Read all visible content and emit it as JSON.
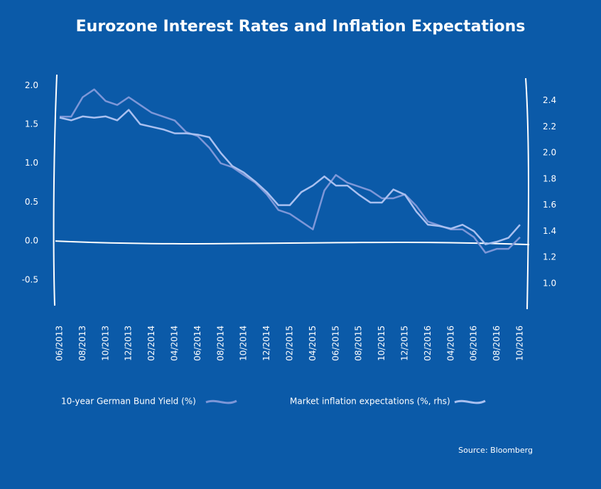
{
  "chart_data": {
    "type": "line",
    "title": "Eurozone Interest Rates and Inflation Expectations",
    "source": "Source: Bloomberg",
    "categories": [
      "06/2013",
      null,
      "08/2013",
      null,
      "10/2013",
      null,
      "12/2013",
      null,
      "02/2014",
      null,
      "04/2014",
      null,
      "06/2014",
      null,
      "08/2014",
      null,
      "10/2014",
      null,
      "12/2014",
      null,
      "02/2015",
      null,
      "04/2015",
      null,
      "06/2015",
      null,
      "08/2015",
      null,
      "10/2015",
      null,
      "12/2015",
      null,
      "02/2016",
      null,
      "04/2016",
      null,
      "06/2016",
      null,
      "08/2016",
      null,
      "10/2016"
    ],
    "series": [
      {
        "name": "10-year German Bund Yield (%)",
        "color": "#7d97d8",
        "values": [
          1.6,
          1.6,
          1.85,
          1.95,
          1.8,
          1.75,
          1.85,
          1.75,
          1.65,
          1.6,
          1.55,
          1.4,
          1.35,
          1.2,
          1.0,
          0.95,
          0.85,
          0.75,
          0.6,
          0.4,
          0.35,
          0.25,
          0.15,
          0.65,
          0.85,
          0.75,
          0.7,
          0.65,
          0.55,
          0.55,
          0.6,
          0.45,
          0.25,
          0.2,
          0.15,
          0.15,
          0.05,
          -0.15,
          -0.1,
          -0.1,
          0.05
        ]
      },
      {
        "name": "Market inflation expectations (%, rhs)",
        "color": "#a9c0f0",
        "axis": "y2",
        "values": [
          2.27,
          2.25,
          2.28,
          2.27,
          2.28,
          2.25,
          2.33,
          2.22,
          2.2,
          2.18,
          2.15,
          2.15,
          2.14,
          2.12,
          2.0,
          1.9,
          1.85,
          1.78,
          1.7,
          1.6,
          1.6,
          1.7,
          1.75,
          1.82,
          1.75,
          1.75,
          1.68,
          1.62,
          1.62,
          1.72,
          1.68,
          1.55,
          1.45,
          1.44,
          1.42,
          1.45,
          1.4,
          1.3,
          1.32,
          1.35,
          1.45
        ]
      }
    ],
    "ylim": [
      -0.83,
      2.14
    ],
    "yticks": [
      {
        "value": -0.5,
        "label": "-0.5"
      },
      {
        "value": 0,
        "label": "0.0"
      },
      0.5,
      {
        "value": 1,
        "label": "1.0"
      },
      1.5,
      {
        "value": 2,
        "label": "2.0"
      }
    ],
    "y2lim": [
      0.83,
      2.6
    ],
    "y2ticks": [
      {
        "value": 1,
        "label": "1.0"
      },
      1.2,
      1.4,
      1.6,
      1.8,
      {
        "value": 2,
        "label": "2.0"
      },
      2.2,
      2.4
    ]
  }
}
